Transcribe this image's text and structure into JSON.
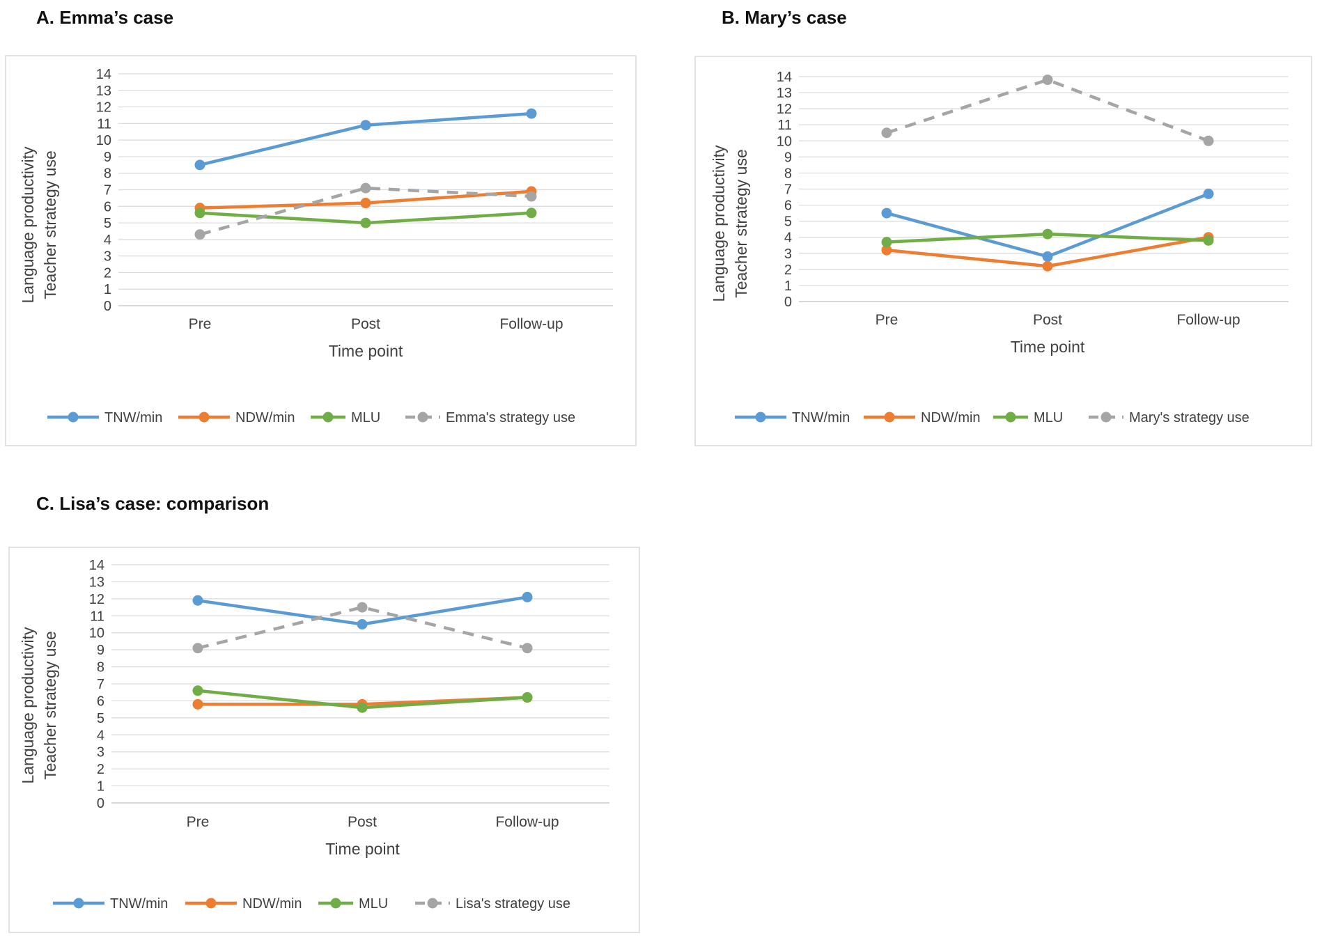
{
  "panels": [
    {
      "title": "A. Emma’s case",
      "chart_data": {
        "type": "line",
        "title": "",
        "categories": [
          "Pre",
          "Post",
          "Follow-up"
        ],
        "xlabel": "Time point",
        "ylabel": [
          "Language productivity",
          "Teacher strategy use"
        ],
        "ylim": [
          0,
          14
        ],
        "yticks": [
          "0",
          "1",
          "2",
          "3",
          "4",
          "5",
          "6",
          "7",
          "8",
          "9",
          "10",
          "11",
          "12",
          "13",
          "14"
        ],
        "grid": true,
        "legend_position": "bottom",
        "series": [
          {
            "name": "TNW/min",
            "values": [
              8.5,
              10.9,
              11.6
            ],
            "color": "#5b9bd5",
            "dashed": false
          },
          {
            "name": "NDW/min",
            "values": [
              5.9,
              6.2,
              6.9
            ],
            "color": "#ed7d31",
            "dashed": false
          },
          {
            "name": "MLU",
            "values": [
              5.6,
              5.0,
              5.6
            ],
            "color": "#70ad47",
            "dashed": false
          },
          {
            "name": "Emma's strategy use",
            "values": [
              4.3,
              7.1,
              6.6
            ],
            "color": "#a5a5a5",
            "dashed": true
          }
        ]
      }
    },
    {
      "title": "B. Mary’s case",
      "chart_data": {
        "type": "line",
        "title": "",
        "categories": [
          "Pre",
          "Post",
          "Follow-up"
        ],
        "xlabel": "Time point",
        "ylabel": [
          "Language productivity",
          "Teacher strategy use"
        ],
        "ylim": [
          0,
          14
        ],
        "yticks": [
          "0",
          "1",
          "2",
          "3",
          "4",
          "5",
          "6",
          "7",
          "8",
          "9",
          "10",
          "11",
          "12",
          "13",
          "14"
        ],
        "grid": true,
        "legend_position": "bottom",
        "series": [
          {
            "name": "TNW/min",
            "values": [
              5.5,
              2.8,
              6.7
            ],
            "color": "#5b9bd5",
            "dashed": false
          },
          {
            "name": "NDW/min",
            "values": [
              3.2,
              2.2,
              4.0
            ],
            "color": "#ed7d31",
            "dashed": false
          },
          {
            "name": "MLU",
            "values": [
              3.7,
              4.2,
              3.8
            ],
            "color": "#70ad47",
            "dashed": false
          },
          {
            "name": "Mary's strategy use",
            "values": [
              10.5,
              13.8,
              10.0
            ],
            "color": "#a5a5a5",
            "dashed": true
          }
        ]
      }
    },
    {
      "title": "C. Lisa’s case: comparison",
      "chart_data": {
        "type": "line",
        "title": "",
        "categories": [
          "Pre",
          "Post",
          "Follow-up"
        ],
        "xlabel": "Time point",
        "ylabel": [
          "Language productivity",
          "Teacher strategy use"
        ],
        "ylim": [
          0,
          14
        ],
        "yticks": [
          "0",
          "1",
          "2",
          "3",
          "4",
          "5",
          "6",
          "7",
          "8",
          "9",
          "10",
          "11",
          "12",
          "13",
          "14"
        ],
        "grid": true,
        "legend_position": "bottom",
        "series": [
          {
            "name": "TNW/min",
            "values": [
              11.9,
              10.5,
              12.1
            ],
            "color": "#5b9bd5",
            "dashed": false
          },
          {
            "name": "NDW/min",
            "values": [
              5.8,
              5.8,
              6.2
            ],
            "color": "#ed7d31",
            "dashed": false
          },
          {
            "name": "MLU",
            "values": [
              6.6,
              5.6,
              6.2
            ],
            "color": "#70ad47",
            "dashed": false
          },
          {
            "name": "Lisa's strategy use",
            "values": [
              9.1,
              11.5,
              9.1
            ],
            "color": "#a5a5a5",
            "dashed": true
          }
        ]
      }
    }
  ]
}
